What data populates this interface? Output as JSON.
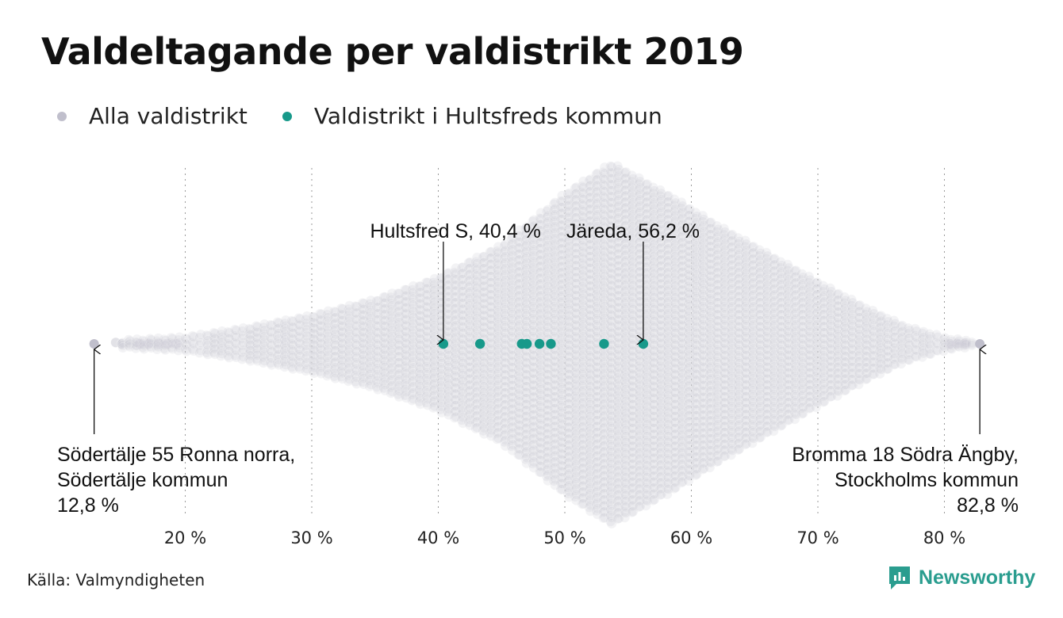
{
  "chart_data": {
    "type": "scatter",
    "subtype": "beeswarm",
    "title": "Valdeltagande per valdistrikt 2019",
    "xlabel": "",
    "ylabel": "",
    "xlim": [
      11,
      86
    ],
    "x_ticks": [
      20,
      30,
      40,
      50,
      60,
      70,
      80
    ],
    "x_tick_labels": [
      "20 %",
      "30 %",
      "40 %",
      "50 %",
      "60 %",
      "70 %",
      "80 %"
    ],
    "grid": "vertical dotted",
    "legend_placement": "top-left",
    "series": [
      {
        "name": "Alla valdistrikt",
        "color": "#c0bfcc",
        "distribution_summary": {
          "min": 12.8,
          "mode_approx": 53.7,
          "max": 82.8
        },
        "values": [
          12.8,
          82.8
        ]
      },
      {
        "name": "Valdistrikt i Hultsfreds kommun",
        "color": "#17998a",
        "values": [
          40.4,
          43.3,
          46.6,
          47.0,
          48.0,
          48.9,
          53.1,
          56.2
        ]
      }
    ],
    "annotations": [
      {
        "lines": [
          "Hultsfred S, 40,4 %"
        ],
        "x": 40.4,
        "align": "right"
      },
      {
        "lines": [
          "Järeda, 56,2 %"
        ],
        "x": 56.2,
        "align": "left"
      },
      {
        "lines": [
          "Södertälje 55 Ronna norra,",
          "Södertälje kommun",
          "12,8 %"
        ],
        "x": 12.8,
        "align": "left"
      },
      {
        "lines": [
          "Bromma 18 Södra Ängby,",
          "Stockholms kommun",
          "82,8 %"
        ],
        "x": 82.8,
        "align": "right"
      }
    ]
  },
  "source": "Källa: Valmyndigheten",
  "brand": {
    "name": "Newsworthy",
    "color": "#2a9d8f"
  }
}
